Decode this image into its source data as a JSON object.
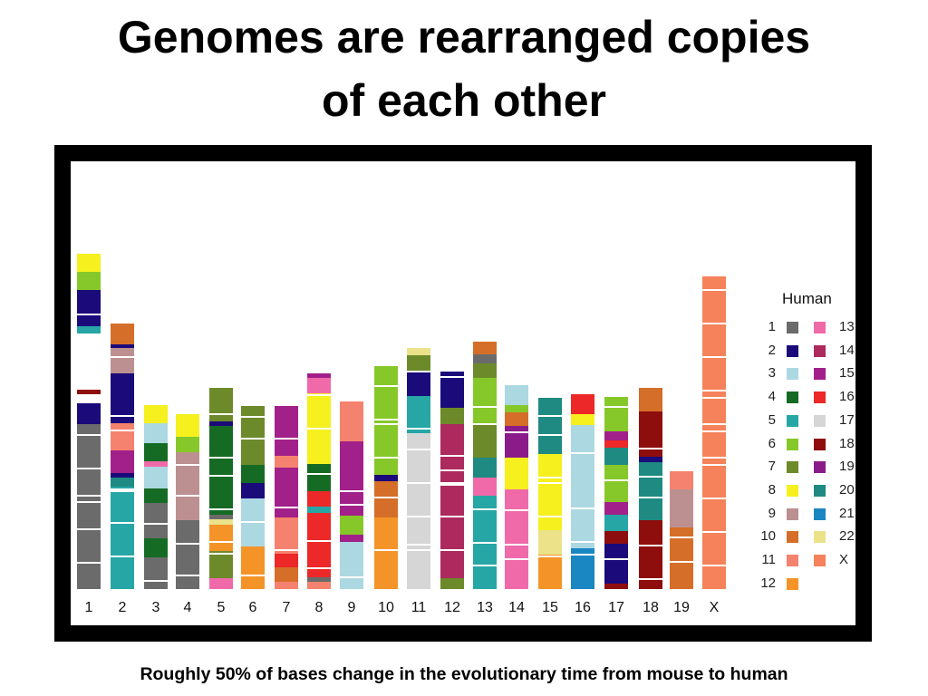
{
  "slide": {
    "title_line1": "Genomes are rearranged copies",
    "title_line2": "of each other",
    "caption": "Roughly 50% of bases change in the evolutionary time from mouse to human"
  },
  "legend": {
    "title": "Human",
    "items": [
      {
        "label": "1",
        "color": "#6b6b6b"
      },
      {
        "label": "2",
        "color": "#1b0a7a"
      },
      {
        "label": "3",
        "color": "#acd8e2"
      },
      {
        "label": "4",
        "color": "#166b24"
      },
      {
        "label": "5",
        "color": "#27a6a6"
      },
      {
        "label": "6",
        "color": "#86c82a"
      },
      {
        "label": "7",
        "color": "#6c8a2a"
      },
      {
        "label": "8",
        "color": "#f5f01e"
      },
      {
        "label": "9",
        "color": "#bc9090"
      },
      {
        "label": "10",
        "color": "#d56e28"
      },
      {
        "label": "11",
        "color": "#f5826e"
      },
      {
        "label": "12",
        "color": "#f49428"
      },
      {
        "label": "13",
        "color": "#f06aaa"
      },
      {
        "label": "14",
        "color": "#ac2a5e"
      },
      {
        "label": "15",
        "color": "#a2208a"
      },
      {
        "label": "16",
        "color": "#ec2828"
      },
      {
        "label": "17",
        "color": "#d6d6d6"
      },
      {
        "label": "18",
        "color": "#8e0e0e"
      },
      {
        "label": "19",
        "color": "#8a1c8a"
      },
      {
        "label": "20",
        "color": "#1e8a82"
      },
      {
        "label": "21",
        "color": "#1a86c2"
      },
      {
        "label": "22",
        "color": "#ebe28a"
      },
      {
        "label": "X",
        "color": "#f5825a"
      }
    ]
  },
  "mouse_chromosomes": [
    {
      "label": "1",
      "segments": [
        [
          "8",
          0,
          20
        ],
        [
          "6",
          20,
          40
        ],
        [
          "2",
          40,
          80
        ],
        [
          "5",
          80,
          88
        ],
        [
          "18",
          150,
          155
        ],
        [
          "2",
          165,
          188
        ],
        [
          "1",
          188,
          370
        ]
      ]
    },
    {
      "label": "2",
      "segments": [
        [
          "10",
          0,
          23
        ],
        [
          "2",
          23,
          27
        ],
        [
          "9",
          27,
          55
        ],
        [
          "2",
          55,
          110
        ],
        [
          "11",
          110,
          140
        ],
        [
          "15",
          140,
          165
        ],
        [
          "2",
          165,
          170
        ],
        [
          "20",
          170,
          180
        ],
        [
          "5",
          180,
          293
        ]
      ]
    },
    {
      "label": "3",
      "segments": [
        [
          "8",
          0,
          20
        ],
        [
          "3",
          20,
          42
        ],
        [
          "4",
          42,
          62
        ],
        [
          "13",
          62,
          68
        ],
        [
          "3",
          68,
          92
        ],
        [
          "4",
          92,
          108
        ],
        [
          "1",
          108,
          147
        ],
        [
          "4",
          147,
          168
        ],
        [
          "1",
          168,
          203
        ]
      ]
    },
    {
      "label": "4",
      "segments": [
        [
          "8",
          0,
          25
        ],
        [
          "6",
          25,
          42
        ],
        [
          "9",
          42,
          117
        ],
        [
          "1",
          117,
          193
        ]
      ]
    },
    {
      "label": "5",
      "segments": [
        [
          "7",
          0,
          37
        ],
        [
          "2",
          37,
          42
        ],
        [
          "4",
          42,
          140
        ],
        [
          "1",
          140,
          145
        ],
        [
          "22",
          145,
          151
        ],
        [
          "12",
          151,
          180
        ],
        [
          "7",
          180,
          210
        ],
        [
          "13",
          210,
          222
        ]
      ]
    },
    {
      "label": "6",
      "segments": [
        [
          "7",
          0,
          65
        ],
        [
          "4",
          65,
          85
        ],
        [
          "2",
          85,
          102
        ],
        [
          "3",
          102,
          155
        ],
        [
          "12",
          155,
          170
        ],
        [
          "12",
          170,
          202
        ]
      ]
    },
    {
      "label": "7",
      "segments": [
        [
          "15",
          0,
          10
        ],
        [
          "15",
          10,
          23
        ],
        [
          "15",
          23,
          55
        ],
        [
          "11",
          55,
          68
        ],
        [
          "15",
          68,
          123
        ],
        [
          "11",
          123,
          163
        ],
        [
          "16",
          163,
          178
        ],
        [
          "10",
          178,
          194
        ],
        [
          "11",
          194,
          202
        ]
      ]
    },
    {
      "label": "8",
      "segments": [
        [
          "15",
          0,
          5
        ],
        [
          "13",
          5,
          22
        ],
        [
          "8",
          22,
          100
        ],
        [
          "4",
          100,
          130
        ],
        [
          "16",
          130,
          147
        ],
        [
          "5",
          147,
          154
        ],
        [
          "16",
          154,
          225
        ],
        [
          "1",
          225,
          230
        ],
        [
          "11",
          230,
          238
        ]
      ]
    },
    {
      "label": "9",
      "segments": [
        [
          "11",
          0,
          22
        ],
        [
          "11",
          22,
          44
        ],
        [
          "15",
          44,
          70
        ],
        [
          "15",
          70,
          126
        ],
        [
          "6",
          126,
          147
        ],
        [
          "15",
          147,
          155
        ],
        [
          "3",
          155,
          207
        ]
      ]
    },
    {
      "label": "10",
      "segments": [
        [
          "6",
          0,
          120
        ],
        [
          "2",
          120,
          127
        ],
        [
          "10",
          127,
          167
        ],
        [
          "12",
          167,
          183
        ],
        [
          "12",
          183,
          200
        ],
        [
          "12",
          200,
          246
        ]
      ]
    },
    {
      "label": "11",
      "segments": [
        [
          "22",
          0,
          8
        ],
        [
          "7",
          8,
          25
        ],
        [
          "2",
          25,
          53
        ],
        [
          "5",
          53,
          94
        ],
        [
          "17",
          94,
          240
        ],
        [
          "17",
          240,
          266
        ]
      ]
    },
    {
      "label": "12",
      "segments": [
        [
          "2",
          0,
          40
        ],
        [
          "7",
          40,
          58
        ],
        [
          "14",
          58,
          115
        ],
        [
          "14",
          115,
          228
        ],
        [
          "7",
          228,
          240
        ]
      ]
    },
    {
      "label": "13",
      "segments": [
        [
          "10",
          0,
          14
        ],
        [
          "1",
          14,
          24
        ],
        [
          "7",
          24,
          40
        ],
        [
          "6",
          40,
          90
        ],
        [
          "7",
          90,
          128
        ],
        [
          "20",
          128,
          150
        ],
        [
          "13",
          150,
          170
        ],
        [
          "5",
          170,
          273
        ]
      ]
    },
    {
      "label": "14",
      "segments": [
        [
          "3",
          0,
          22
        ],
        [
          "6",
          22,
          30
        ],
        [
          "10",
          30,
          45
        ],
        [
          "19",
          45,
          80
        ],
        [
          "8",
          80,
          95
        ],
        [
          "8",
          95,
          115
        ],
        [
          "13",
          115,
          168
        ],
        [
          "13",
          168,
          225
        ]
      ]
    },
    {
      "label": "15",
      "segments": [
        [
          "20",
          0,
          62
        ],
        [
          "8",
          62,
          146
        ],
        [
          "22",
          146,
          173
        ],
        [
          "12",
          173,
          211
        ]
      ]
    },
    {
      "label": "16",
      "segments": [
        [
          "16",
          0,
          22
        ],
        [
          "8",
          22,
          34
        ],
        [
          "3",
          34,
          52
        ],
        [
          "3",
          52,
          100
        ],
        [
          "3",
          100,
          170
        ],
        [
          "21",
          170,
          215
        ]
      ]
    },
    {
      "label": "17",
      "segments": [
        [
          "6",
          0,
          38
        ],
        [
          "15",
          38,
          48
        ],
        [
          "16",
          48,
          56
        ],
        [
          "20",
          56,
          75
        ],
        [
          "6",
          75,
          116
        ],
        [
          "15",
          116,
          130
        ],
        [
          "5",
          130,
          148
        ],
        [
          "18",
          148,
          162
        ],
        [
          "2",
          162,
          206
        ],
        [
          "18",
          206,
          212
        ]
      ]
    },
    {
      "label": "18",
      "segments": [
        [
          "10",
          0,
          26
        ],
        [
          "18",
          26,
          76
        ],
        [
          "2",
          76,
          82
        ],
        [
          "20",
          82,
          146
        ],
        [
          "18",
          146,
          222
        ]
      ]
    },
    {
      "label": "19",
      "segments": [
        [
          "11",
          0,
          20
        ],
        [
          "9",
          20,
          42
        ],
        [
          "9",
          42,
          62
        ],
        [
          "10",
          62,
          130
        ]
      ]
    },
    {
      "label": "X",
      "segments": [
        [
          "X",
          0,
          345
        ]
      ]
    }
  ]
}
